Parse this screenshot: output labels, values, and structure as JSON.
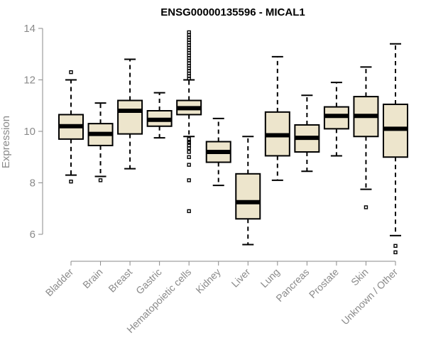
{
  "chart_data": {
    "type": "boxplot",
    "title": "ENSG00000135596 - MICAL1",
    "xlabel": "",
    "ylabel": "Expression",
    "ylim": [
      5.0,
      14.2
    ],
    "yticks": [
      6,
      8,
      10,
      12,
      14
    ],
    "box_fill": "#ede5cc",
    "categories": [
      "Bladder",
      "Brain",
      "Breast",
      "Gastric",
      "Hematopoietic cells",
      "Kidney",
      "Liver",
      "Lung",
      "Pancreas",
      "Prostate",
      "Skin",
      "Unknown / Other"
    ],
    "boxes": [
      {
        "name": "Bladder",
        "min": 8.3,
        "q1": 9.7,
        "median": 10.2,
        "q3": 10.65,
        "max": 12.0,
        "outliers": [
          8.05,
          12.3
        ]
      },
      {
        "name": "Brain",
        "min": 8.25,
        "q1": 9.45,
        "median": 9.9,
        "q3": 10.3,
        "max": 11.1,
        "outliers": [
          8.1
        ]
      },
      {
        "name": "Breast",
        "min": 8.55,
        "q1": 9.9,
        "median": 10.8,
        "q3": 11.2,
        "max": 12.8,
        "outliers": []
      },
      {
        "name": "Gastric",
        "min": 9.75,
        "q1": 10.2,
        "median": 10.45,
        "q3": 10.8,
        "max": 11.5,
        "outliers": []
      },
      {
        "name": "Hematopoietic cells",
        "min": 9.8,
        "q1": 10.65,
        "median": 10.9,
        "q3": 11.2,
        "max": 12.0,
        "outliers": [
          6.9,
          8.1,
          8.7,
          9.0,
          9.2,
          9.35,
          9.45,
          9.55,
          9.6,
          9.7,
          12.05,
          12.15,
          12.25,
          12.35,
          12.45,
          12.55,
          12.65,
          12.75,
          12.85,
          12.95,
          13.05,
          13.15,
          13.25,
          13.35,
          13.45,
          13.55,
          13.65,
          13.75,
          13.85
        ]
      },
      {
        "name": "Kidney",
        "min": 7.9,
        "q1": 8.8,
        "median": 9.2,
        "q3": 9.6,
        "max": 10.5,
        "outliers": []
      },
      {
        "name": "Liver",
        "min": 5.6,
        "q1": 6.6,
        "median": 7.25,
        "q3": 8.35,
        "max": 9.8,
        "outliers": []
      },
      {
        "name": "Lung",
        "min": 8.1,
        "q1": 9.05,
        "median": 9.85,
        "q3": 10.75,
        "max": 12.9,
        "outliers": []
      },
      {
        "name": "Pancreas",
        "min": 8.45,
        "q1": 9.2,
        "median": 9.75,
        "q3": 10.25,
        "max": 11.4,
        "outliers": []
      },
      {
        "name": "Prostate",
        "min": 9.05,
        "q1": 10.1,
        "median": 10.6,
        "q3": 10.95,
        "max": 11.9,
        "outliers": []
      },
      {
        "name": "Skin",
        "min": 7.75,
        "q1": 9.8,
        "median": 10.6,
        "q3": 11.35,
        "max": 12.5,
        "outliers": [
          7.05
        ]
      },
      {
        "name": "Unknown / Other",
        "min": 5.95,
        "q1": 9.0,
        "median": 10.1,
        "q3": 11.05,
        "max": 13.4,
        "outliers": [
          5.3,
          5.55
        ]
      }
    ]
  }
}
